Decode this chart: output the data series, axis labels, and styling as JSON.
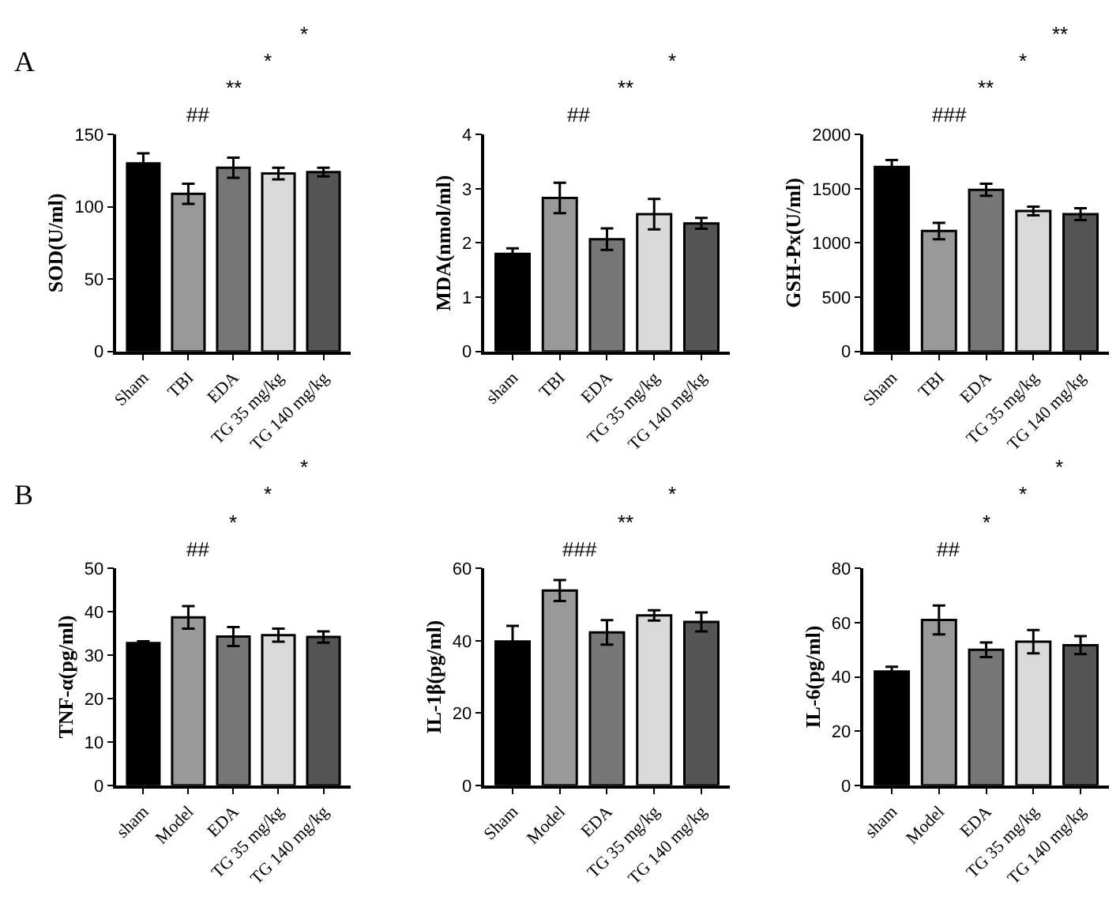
{
  "chart_data": [
    {
      "type": "bar",
      "title": "A",
      "ylabel": "SOD(U/ml)",
      "categories": [
        "Sham",
        "TBI",
        "EDA",
        "TG 35 mg/kg",
        "TG 140 mg/kg"
      ],
      "values": [
        130,
        109,
        127,
        123,
        124
      ],
      "errors": [
        7,
        7,
        7,
        4,
        3
      ],
      "colors": [
        "#000000",
        "#999999",
        "#777777",
        "#d9d9d9",
        "#555555"
      ],
      "ylim": [
        0,
        150
      ],
      "yticks": [
        0,
        50,
        100,
        150
      ],
      "annotations": [
        "##",
        "**",
        "*",
        "*"
      ]
    },
    {
      "type": "bar",
      "ylabel": "MDA(nmol/ml)",
      "categories": [
        "sham",
        "TBI",
        "EDA",
        "TG 35 mg/kg",
        "TG 140 mg/kg"
      ],
      "values": [
        1.8,
        2.83,
        2.07,
        2.53,
        2.36
      ],
      "errors": [
        0.1,
        0.28,
        0.2,
        0.28,
        0.1
      ],
      "colors": [
        "#000000",
        "#999999",
        "#777777",
        "#d9d9d9",
        "#555555"
      ],
      "ylim": [
        0,
        4
      ],
      "yticks": [
        0,
        1,
        2,
        3,
        4
      ],
      "annotations": [
        "##",
        "**",
        "*"
      ]
    },
    {
      "type": "bar",
      "ylabel": "GSH-Px(U/ml)",
      "categories": [
        "Sham",
        "TBI",
        "EDA",
        "TG 35 mg/kg",
        "TG 140 mg/kg"
      ],
      "values": [
        1700,
        1110,
        1490,
        1295,
        1265
      ],
      "errors": [
        65,
        75,
        55,
        40,
        55
      ],
      "colors": [
        "#000000",
        "#999999",
        "#777777",
        "#d9d9d9",
        "#555555"
      ],
      "ylim": [
        0,
        2000
      ],
      "yticks": [
        0,
        500,
        1000,
        1500,
        2000
      ],
      "annotations": [
        "###",
        "**",
        "*",
        "**"
      ]
    },
    {
      "type": "bar",
      "title": "B",
      "ylabel": "TNF-α(pg/ml)",
      "categories": [
        "sham",
        "Model",
        "EDA",
        "TG 35 mg/kg",
        "TG 140 mg/kg"
      ],
      "values": [
        32.8,
        38.7,
        34.3,
        34.6,
        34.2
      ],
      "errors": [
        0.4,
        2.6,
        2.2,
        1.5,
        1.3
      ],
      "colors": [
        "#000000",
        "#999999",
        "#777777",
        "#d9d9d9",
        "#555555"
      ],
      "ylim": [
        0,
        50
      ],
      "yticks": [
        0,
        10,
        20,
        30,
        40,
        50
      ],
      "annotations": [
        "##",
        "*",
        "*",
        "*"
      ]
    },
    {
      "type": "bar",
      "ylabel": "IL-1β(pg/ml)",
      "categories": [
        "Sham",
        "Model",
        "EDA",
        "TG 35 mg/kg",
        "TG 140 mg/kg"
      ],
      "values": [
        39.8,
        53.9,
        42.3,
        47,
        45.2
      ],
      "errors": [
        4.3,
        2.9,
        3.4,
        1.4,
        2.6
      ],
      "colors": [
        "#000000",
        "#999999",
        "#777777",
        "#d9d9d9",
        "#555555"
      ],
      "ylim": [
        0,
        60
      ],
      "yticks": [
        0,
        20,
        40,
        60
      ],
      "annotations": [
        "###",
        "**",
        "*"
      ]
    },
    {
      "type": "bar",
      "ylabel": "IL-6(pg/ml)",
      "categories": [
        "sham",
        "Model",
        "EDA",
        "TG 35 mg/kg",
        "TG 140 mg/kg"
      ],
      "values": [
        42,
        61,
        50,
        53,
        51.7
      ],
      "errors": [
        1.7,
        5.3,
        2.7,
        4.3,
        3.3
      ],
      "colors": [
        "#000000",
        "#999999",
        "#777777",
        "#d9d9d9",
        "#555555"
      ],
      "ylim": [
        0,
        80
      ],
      "yticks": [
        0,
        20,
        40,
        60,
        80
      ],
      "annotations": [
        "##",
        "*",
        "*",
        "*"
      ]
    }
  ]
}
